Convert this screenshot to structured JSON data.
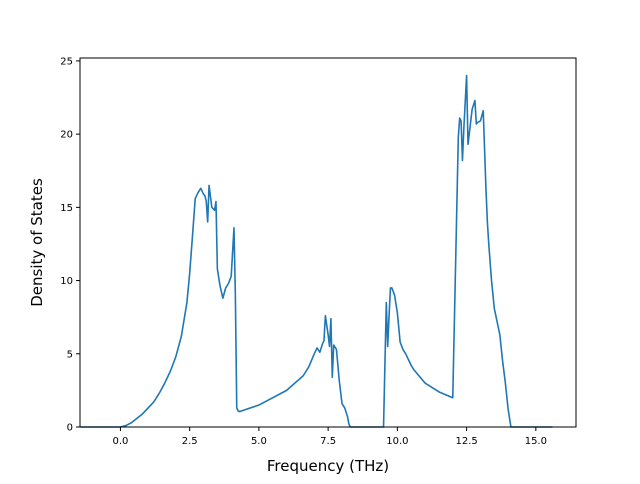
{
  "chart_data": {
    "type": "line",
    "title": "",
    "xlabel": "Frequency (THz)",
    "ylabel": "Density of States",
    "xlim": [
      -1.46,
      16.45
    ],
    "ylim": [
      0,
      25.2
    ],
    "xticks": [
      0.0,
      2.5,
      5.0,
      7.5,
      10.0,
      12.5,
      15.0
    ],
    "xtick_labels": [
      "0.0",
      "2.5",
      "5.0",
      "7.5",
      "10.0",
      "12.5",
      "15.0"
    ],
    "yticks": [
      0,
      5,
      10,
      15,
      20,
      25
    ],
    "ytick_labels": [
      "0",
      "5",
      "10",
      "15",
      "20",
      "25"
    ],
    "grid": false,
    "line_color": "#1f77b4",
    "series": [
      {
        "x": [
          -1.44,
          -0.5,
          0.0,
          0.2,
          0.4,
          0.6,
          0.8,
          1.0,
          1.2,
          1.4,
          1.6,
          1.8,
          2.0,
          2.2,
          2.4,
          2.5,
          2.6,
          2.7,
          2.8,
          2.9,
          3.0,
          3.05,
          3.1,
          3.15,
          3.2,
          3.3,
          3.4,
          3.45,
          3.5,
          3.6,
          3.7,
          3.8,
          3.9,
          4.0,
          4.1,
          4.15,
          4.2,
          4.25,
          4.3,
          5.0,
          6.0,
          6.6,
          6.8,
          7.0,
          7.1,
          7.2,
          7.3,
          7.35,
          7.4,
          7.5,
          7.55,
          7.6,
          7.65,
          7.7,
          7.8,
          7.9,
          8.0,
          8.1,
          8.2,
          8.25,
          8.3,
          8.4,
          8.8,
          9.0,
          9.5,
          9.6,
          9.65,
          9.7,
          9.75,
          9.8,
          9.9,
          10.0,
          10.1,
          10.2,
          10.3,
          10.5,
          10.6,
          11.0,
          11.5,
          12.0,
          12.2,
          12.25,
          12.3,
          12.35,
          12.4,
          12.5,
          12.55,
          12.6,
          12.7,
          12.8,
          12.85,
          12.9,
          13.0,
          13.1,
          13.2,
          13.25,
          13.3,
          13.4,
          13.5,
          13.7,
          13.8,
          13.9,
          14.0,
          14.1,
          14.2,
          14.25,
          14.5,
          15.0,
          15.6
        ],
        "y": [
          0.0,
          0.0,
          0.0,
          0.1,
          0.3,
          0.6,
          0.9,
          1.3,
          1.7,
          2.3,
          3.0,
          3.8,
          4.8,
          6.2,
          8.5,
          10.5,
          13.0,
          15.6,
          16.0,
          16.3,
          15.9,
          15.8,
          15.4,
          14.0,
          16.5,
          15.0,
          14.8,
          15.4,
          10.8,
          9.6,
          8.8,
          9.5,
          9.8,
          10.3,
          13.6,
          9.0,
          1.3,
          1.1,
          1.05,
          1.5,
          2.5,
          3.5,
          4.1,
          5.0,
          5.4,
          5.1,
          5.7,
          5.9,
          7.6,
          6.3,
          5.5,
          7.4,
          3.4,
          5.6,
          5.3,
          3.2,
          1.6,
          1.3,
          0.7,
          0.2,
          0.0,
          0.0,
          0.0,
          0.0,
          0.0,
          8.5,
          5.5,
          7.6,
          9.5,
          9.5,
          9.0,
          7.8,
          5.8,
          5.3,
          5.0,
          4.2,
          3.9,
          3.0,
          2.4,
          2.0,
          19.8,
          21.1,
          20.9,
          18.2,
          20.4,
          24.0,
          19.3,
          20.1,
          21.7,
          22.3,
          20.7,
          20.8,
          20.9,
          21.6,
          16.2,
          14.0,
          12.5,
          10.0,
          8.1,
          6.3,
          4.5,
          3.0,
          1.2,
          0.0,
          0.0,
          0.0,
          0.0,
          0.0,
          0.0
        ]
      }
    ]
  }
}
